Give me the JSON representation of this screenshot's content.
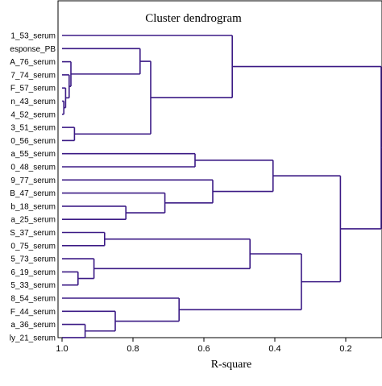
{
  "chart_data": {
    "type": "dendrogram",
    "title": "Cluster dendrogram",
    "xlabel": "R-square",
    "xlim": [
      1.0,
      0.1
    ],
    "x_ticks": [
      1.0,
      0.8,
      0.6,
      0.4,
      0.2
    ],
    "x_tick_labels": [
      "1.0",
      "0.8",
      "0.6",
      "0.4",
      "0.2"
    ],
    "line_color": "#3b1a85",
    "leaves": [
      "1_53_serum",
      "esponse_PB",
      "A_76_serum",
      "7_74_serum",
      "F_57_serum",
      "n_43_serum",
      "4_52_serum",
      "3_51_serum",
      "0_56_serum",
      "a_55_serum",
      "0_48_serum",
      "9_77_serum",
      "B_47_serum",
      "b_18_serum",
      "a_25_serum",
      "S_37_serum",
      "0_75_serum",
      "5_73_serum",
      "6_19_serum",
      "5_33_serum",
      "8_54_serum",
      "F_44_serum",
      "a_36_serum",
      "ly_21_serum"
    ],
    "merges": [
      {
        "a": "L5",
        "b": "L6",
        "r2": 0.995
      },
      {
        "a": "L4",
        "b": "M0",
        "r2": 0.99
      },
      {
        "a": "L3",
        "b": "M1",
        "r2": 0.98
      },
      {
        "a": "L2",
        "b": "M2",
        "r2": 0.975
      },
      {
        "a": "L1",
        "b": "M3",
        "r2": 0.78
      },
      {
        "a": "L7",
        "b": "L8",
        "r2": 0.965
      },
      {
        "a": "M4",
        "b": "M5",
        "r2": 0.75
      },
      {
        "a": "L0",
        "b": "M6",
        "r2": 0.52
      },
      {
        "a": "L13",
        "b": "L14",
        "r2": 0.82
      },
      {
        "a": "L12",
        "b": "M8",
        "r2": 0.71
      },
      {
        "a": "L11",
        "b": "M9",
        "r2": 0.575
      },
      {
        "a": "L9",
        "b": "L10",
        "r2": 0.625
      },
      {
        "a": "M11",
        "b": "M10",
        "r2": 0.405
      },
      {
        "a": "L15",
        "b": "L16",
        "r2": 0.88
      },
      {
        "a": "L18",
        "b": "L19",
        "r2": 0.955
      },
      {
        "a": "L17",
        "b": "M14",
        "r2": 0.91
      },
      {
        "a": "M13",
        "b": "M15",
        "r2": 0.47
      },
      {
        "a": "L22",
        "b": "L23",
        "r2": 0.935
      },
      {
        "a": "L21",
        "b": "M17",
        "r2": 0.85
      },
      {
        "a": "L20",
        "b": "M18",
        "r2": 0.67
      },
      {
        "a": "M16",
        "b": "M19",
        "r2": 0.325
      },
      {
        "a": "M12",
        "b": "M20",
        "r2": 0.215
      },
      {
        "a": "M7",
        "b": "M21",
        "r2": 0.1
      }
    ]
  }
}
